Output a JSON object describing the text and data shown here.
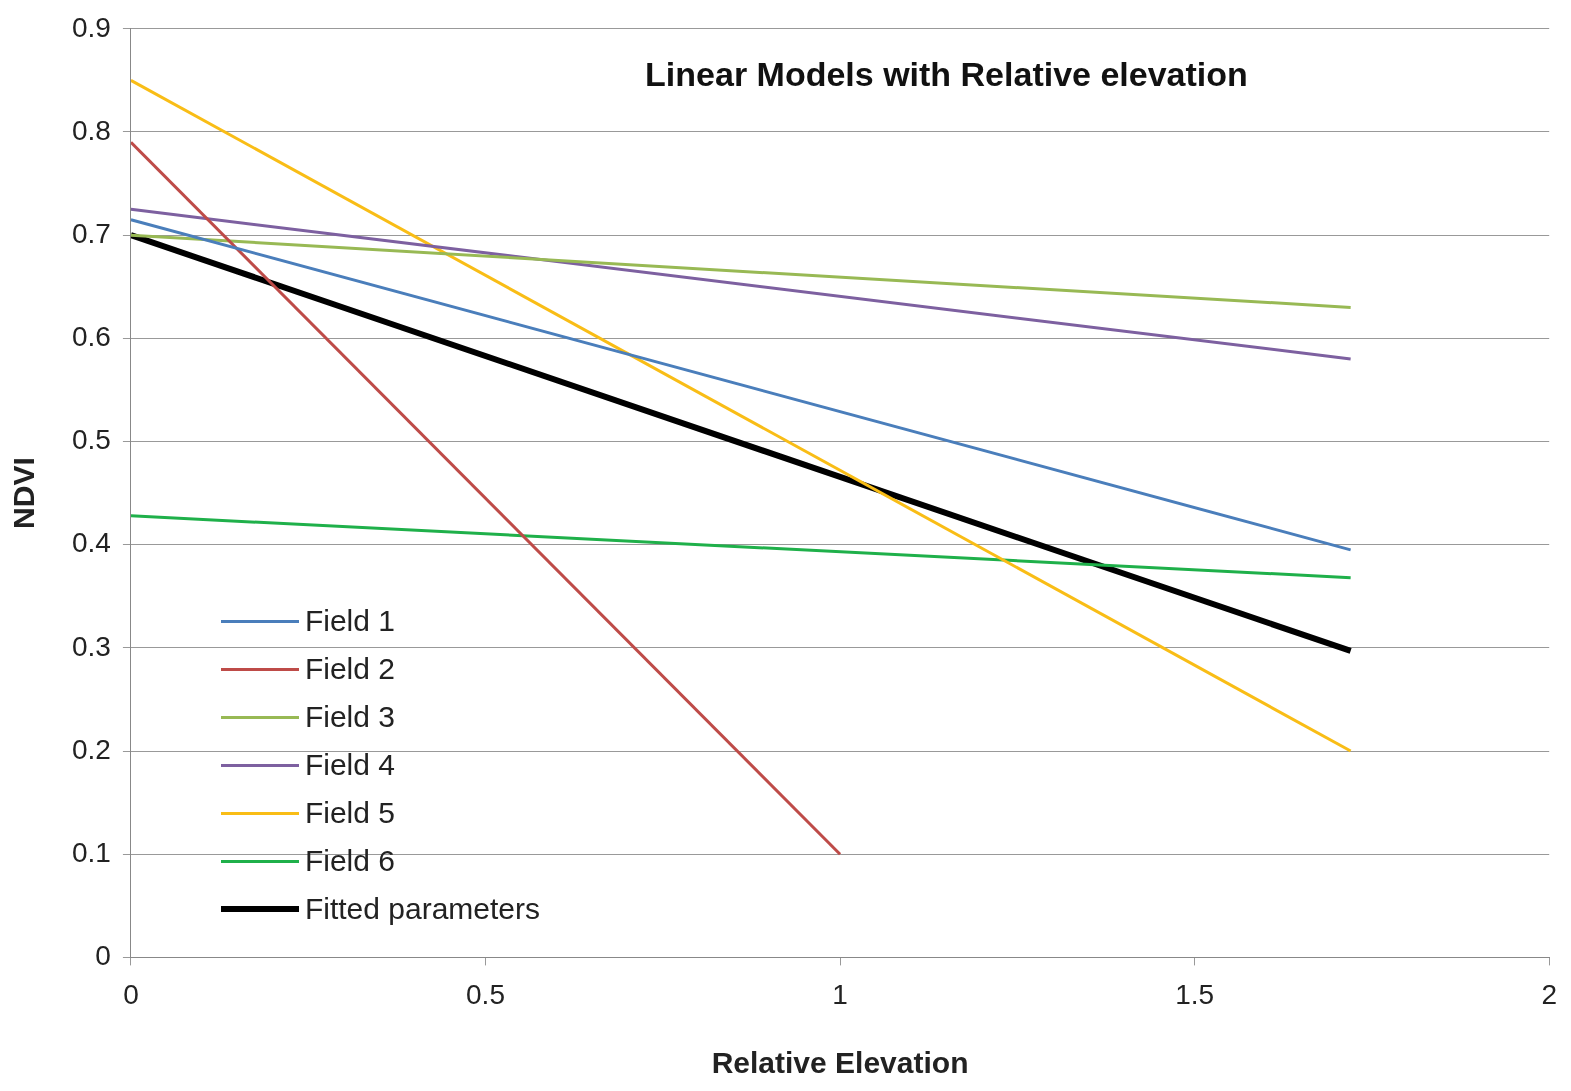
{
  "chart_data": {
    "type": "line",
    "title": "Linear Models with Relative elevation",
    "xlabel": "Relative Elevation",
    "ylabel": "NDVI",
    "xlim": [
      0,
      2
    ],
    "xticks": [
      0,
      0.5,
      1,
      1.5,
      2
    ],
    "ylim": [
      0,
      0.9
    ],
    "yticks": [
      0,
      0.1,
      0.2,
      0.3,
      0.4,
      0.5,
      0.6,
      0.7,
      0.8,
      0.9
    ],
    "grid": "y",
    "legend": "bottom left",
    "marker": "none",
    "line_style": "solid",
    "series": [
      {
        "name": "Field 1",
        "color": "#4a7ebb",
        "x": [
          0,
          1.72
        ],
        "values": [
          0.715,
          0.395
        ]
      },
      {
        "name": "Field 2",
        "color": "#be4b48",
        "x": [
          0,
          1.0
        ],
        "values": [
          0.79,
          0.1
        ]
      },
      {
        "name": "Field 3",
        "color": "#98b954",
        "x": [
          0,
          1.72
        ],
        "values": [
          0.7,
          0.63
        ]
      },
      {
        "name": "Field 4",
        "color": "#7d60a0",
        "x": [
          0,
          1.72
        ],
        "values": [
          0.725,
          0.58
        ]
      },
      {
        "name": "Field 5",
        "color": "#f9bd16",
        "x": [
          0,
          1.72
        ],
        "values": [
          0.85,
          0.2
        ]
      },
      {
        "name": "Field 6",
        "color": "#1fb04a",
        "x": [
          0,
          1.72
        ],
        "values": [
          0.428,
          0.368
        ]
      },
      {
        "name": "Fitted parameters",
        "color": "#000000",
        "x": [
          0,
          1.72
        ],
        "values": [
          0.7,
          0.297
        ]
      }
    ]
  }
}
